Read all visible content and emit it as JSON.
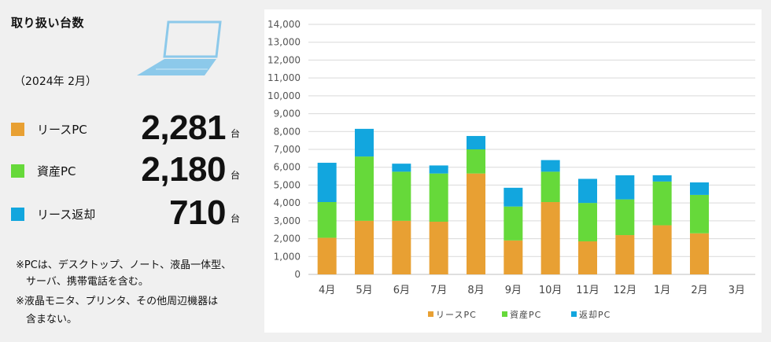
{
  "summary": {
    "title": "取り扱い台数",
    "period": "（2024年 2月）",
    "items": [
      {
        "label": "リースPC",
        "value": "2,281",
        "unit": "台",
        "color": "#E8A033"
      },
      {
        "label": "資産PC",
        "value": "2,180",
        "unit": "台",
        "color": "#66D93A"
      },
      {
        "label": "リース返却",
        "value": "710",
        "unit": "台",
        "color": "#12A6DE"
      }
    ],
    "notes": [
      "※PCは、デスクトップ、ノート、液晶一体型、",
      "　サーバ、携帯電話を含む。",
      "※液晶モニタ、プリンタ、その他周辺機器は",
      "　含まない。"
    ]
  },
  "chart_data": {
    "type": "bar",
    "stacked": true,
    "categories": [
      "4月",
      "5月",
      "6月",
      "7月",
      "8月",
      "9月",
      "10月",
      "11月",
      "12月",
      "1月",
      "2月",
      "3月"
    ],
    "series": [
      {
        "name": "リースPC",
        "color": "#E8A033",
        "values": [
          2050,
          3000,
          3000,
          2950,
          5650,
          1900,
          4050,
          1850,
          2200,
          2750,
          2300,
          null
        ]
      },
      {
        "name": "資産PC",
        "color": "#66D93A",
        "values": [
          2000,
          3600,
          2750,
          2700,
          1350,
          1900,
          1700,
          2150,
          2000,
          2450,
          2150,
          null
        ]
      },
      {
        "name": "返却PC",
        "color": "#12A6DE",
        "values": [
          2200,
          1550,
          450,
          450,
          750,
          1050,
          650,
          1350,
          1350,
          350,
          700,
          null
        ]
      }
    ],
    "legend_labels": [
      "リースPC",
      "資産PC",
      "返却PC"
    ],
    "ylim": [
      0,
      14000
    ],
    "yticks": [
      "0",
      "1,000",
      "2,000",
      "3,000",
      "4,000",
      "5,000",
      "6,000",
      "7,000",
      "8,000",
      "9,000",
      "10,000",
      "11,000",
      "12,000",
      "13,000",
      "14,000"
    ],
    "grid": true,
    "legend_position": "bottom"
  }
}
